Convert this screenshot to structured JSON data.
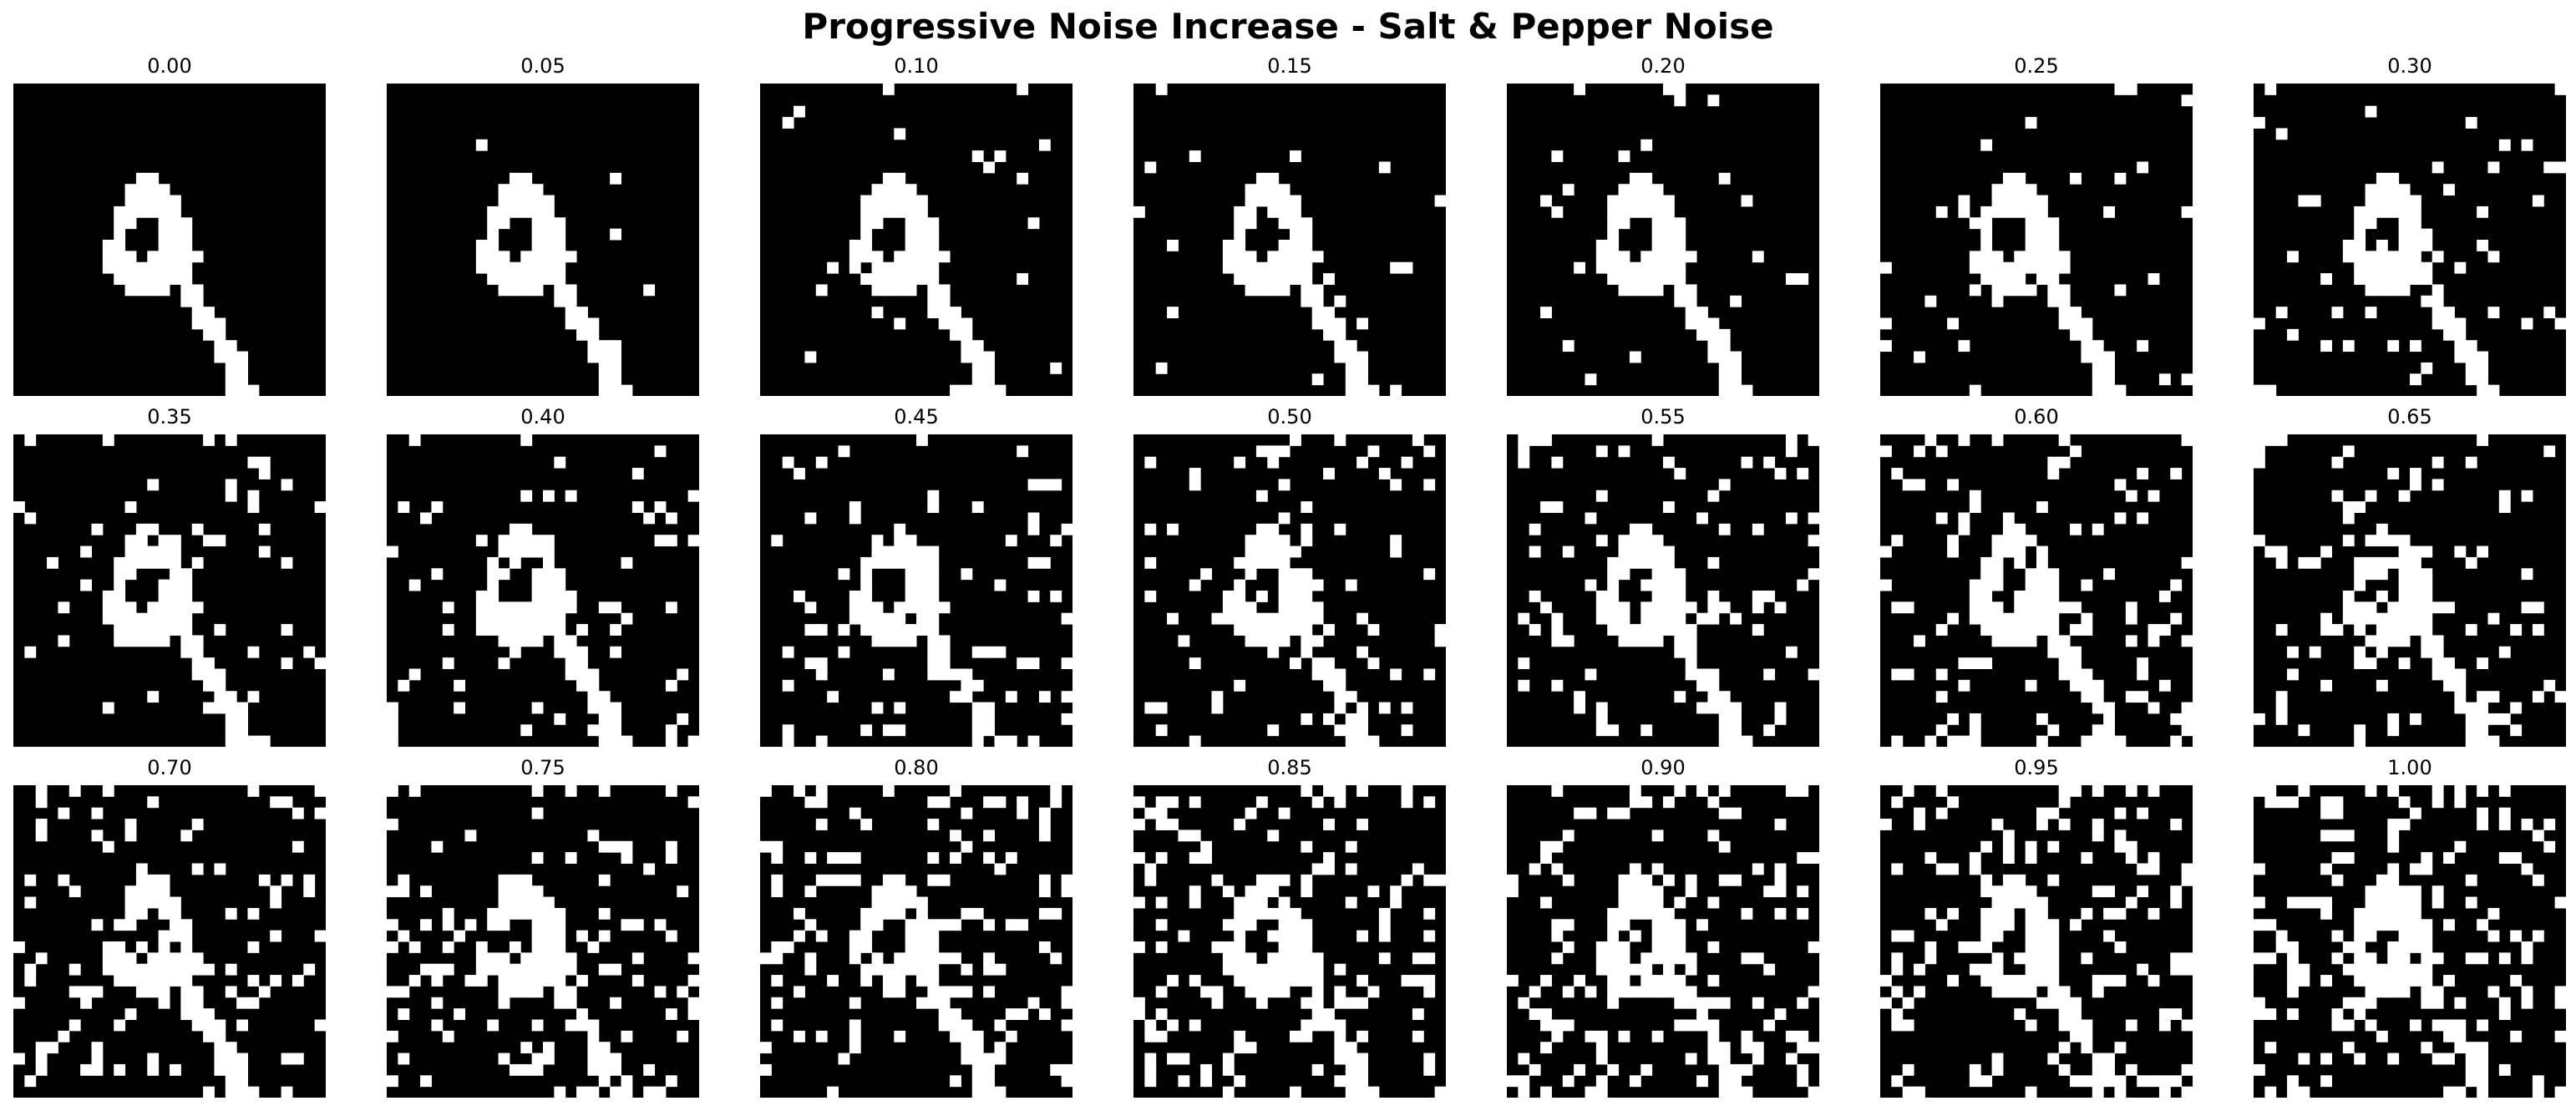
{
  "chart_data": {
    "type": "heatmap",
    "title": "Progressive Noise Increase - Salt & Pepper Noise",
    "colors": {
      "background": "#000000",
      "foreground": "#ffffff"
    },
    "grid_size": [
      28,
      28
    ],
    "grid": false,
    "base_digit_rows": [
      "............................",
      "............................",
      "............................",
      "............................",
      "............................",
      "............................",
      "............................",
      "............................",
      "...........##...............",
      "..........####..............",
      "..........#####.............",
      ".........######.............",
      ".........##..###............",
      ".........#...###............",
      "........##...###............",
      "........###.#####...........",
      "........########............",
      ".........#######............",
      "..........####.##...........",
      "...............##...........",
      "................##..........",
      "................###.........",
      ".................##.........",
      "..................##........",
      "..................###.......",
      "...................##.......",
      "...................##.......",
      "...................###......"
    ],
    "panels": [
      {
        "label": "0.00",
        "noise_level": 0.0
      },
      {
        "label": "0.05",
        "noise_level": 0.05
      },
      {
        "label": "0.10",
        "noise_level": 0.1
      },
      {
        "label": "0.15",
        "noise_level": 0.15
      },
      {
        "label": "0.20",
        "noise_level": 0.2
      },
      {
        "label": "0.25",
        "noise_level": 0.25
      },
      {
        "label": "0.30",
        "noise_level": 0.3
      },
      {
        "label": "0.35",
        "noise_level": 0.35
      },
      {
        "label": "0.40",
        "noise_level": 0.4
      },
      {
        "label": "0.45",
        "noise_level": 0.45
      },
      {
        "label": "0.50",
        "noise_level": 0.5
      },
      {
        "label": "0.55",
        "noise_level": 0.55
      },
      {
        "label": "0.60",
        "noise_level": 0.6
      },
      {
        "label": "0.65",
        "noise_level": 0.65
      },
      {
        "label": "0.70",
        "noise_level": 0.7
      },
      {
        "label": "0.75",
        "noise_level": 0.75
      },
      {
        "label": "0.80",
        "noise_level": 0.8
      },
      {
        "label": "0.85",
        "noise_level": 0.85
      },
      {
        "label": "0.90",
        "noise_level": 0.9
      },
      {
        "label": "0.95",
        "noise_level": 0.95
      },
      {
        "label": "1.00",
        "noise_level": 1.0
      }
    ]
  }
}
